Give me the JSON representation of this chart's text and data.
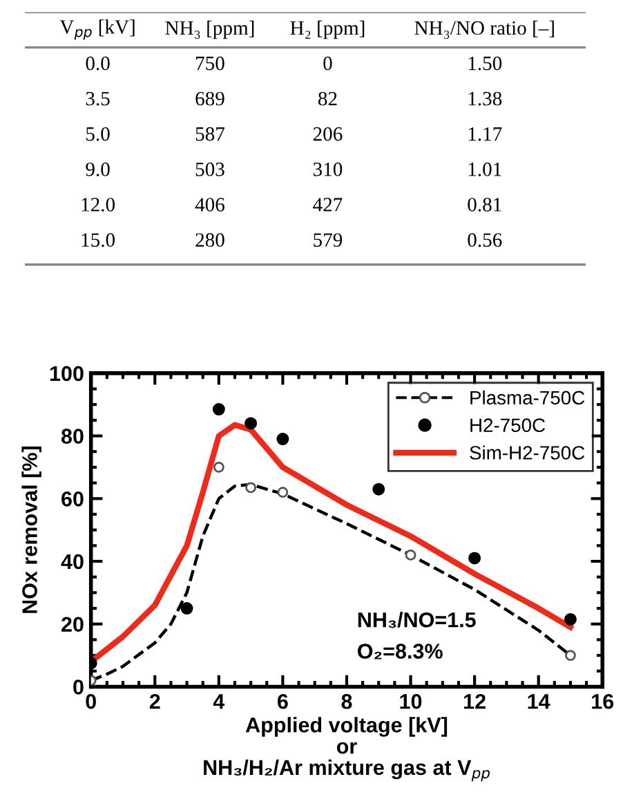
{
  "chart_data": [
    {
      "type": "other",
      "categories": [
        "V$_{pp}$ [kV]",
        "NH₃ [ppm]",
        "H₂ [ppm]",
        "NH₃/NO ratio [–]"
      ],
      "annotations": [
        "0.0",
        "750",
        "0",
        "1.50",
        "3.5",
        "689",
        "82",
        "1.38",
        "5.0",
        "587",
        "206",
        "1.17",
        "9.0",
        "503",
        "310",
        "1.01",
        "12.0",
        "406",
        "427",
        "0.81",
        "15.0",
        "280",
        "579",
        "0.56"
      ]
    },
    {
      "type": "line",
      "xlabel": "Applied voltage [kV]\nor\nNH₃/H₂/Ar mixture gas at V$_{pp}$",
      "ylabel": "NOx removal [%]",
      "xlim": [
        0,
        16
      ],
      "ylim": [
        0,
        100
      ],
      "xticks": [
        0,
        2,
        4,
        6,
        8,
        10,
        12,
        14,
        16
      ],
      "yticks": [
        0,
        20,
        40,
        60,
        80,
        100
      ],
      "grid": false,
      "legend": "top right",
      "annotations": [
        "NH₃/NO=1.5",
        "O₂=8.3%"
      ],
      "series": [
        {
          "name": "Plasma-750C",
          "type": "line",
          "color": "#000000",
          "line_style": "dashed",
          "marker": "none",
          "x": [
            0,
            0.5,
            1,
            2,
            2.5,
            3,
            3.5,
            4,
            4.5,
            5,
            6,
            8,
            10,
            12,
            14,
            15
          ],
          "values": [
            2,
            4,
            6.5,
            14,
            20,
            30,
            48,
            60,
            64,
            64.5,
            61.5,
            52,
            42,
            31,
            18,
            10
          ]
        },
        {
          "type": "scatter",
          "color": "#555555",
          "marker": "circle",
          "x": [
            0,
            3,
            4,
            5,
            6,
            10,
            15
          ],
          "values": [
            2,
            null,
            70,
            63.5,
            62,
            42,
            10
          ]
        },
        {
          "name": "H2-750C",
          "type": "scatter",
          "color": "#000000",
          "marker": "circle",
          "x": [
            0,
            3,
            4,
            5,
            6,
            9,
            12,
            15
          ],
          "values": [
            7.5,
            25,
            88.5,
            84,
            79,
            63,
            41,
            21.5
          ]
        },
        {
          "name": "Sim-H2-750C",
          "type": "line",
          "color": "#ee2a1b",
          "line_style": "solid",
          "marker": "none",
          "x": [
            0,
            1,
            2,
            3,
            3.5,
            4,
            4.5,
            5,
            5.5,
            6,
            7,
            8,
            10,
            12,
            14,
            15
          ],
          "values": [
            8,
            16,
            26,
            45,
            62,
            80,
            83.5,
            82,
            76,
            70,
            64,
            58,
            48,
            36,
            25,
            19
          ]
        }
      ]
    }
  ]
}
